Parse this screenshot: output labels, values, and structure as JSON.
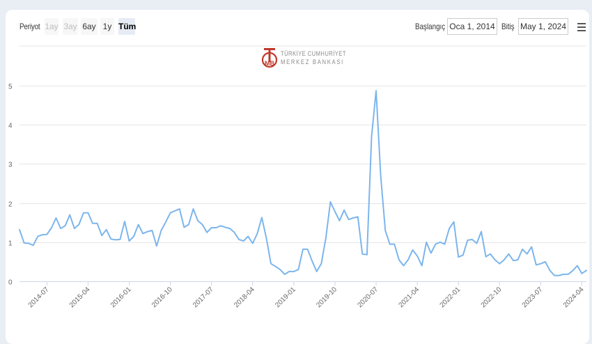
{
  "toolbar": {
    "period_label": "Periyot",
    "buttons": [
      {
        "label": "1ay",
        "state": "disabled"
      },
      {
        "label": "3ay",
        "state": "disabled"
      },
      {
        "label": "6ay",
        "state": "normal"
      },
      {
        "label": "1y",
        "state": "normal"
      },
      {
        "label": "Tüm",
        "state": "active"
      }
    ],
    "start_label": "Başlangıç",
    "start_value": "Oca 1, 2014",
    "end_label": "Bitiş",
    "end_value": "May 1, 2024",
    "menu_icon": "hamburger-menu-icon"
  },
  "logo": {
    "line1": "TÜRKİYE CUMHURİYET",
    "line2": "MERKEZ BANKASI",
    "icon": "tcmb-logo-icon",
    "color": "#c0392b"
  },
  "chart_data": {
    "type": "line",
    "title": "",
    "xlabel": "",
    "ylabel": "",
    "ylim": [
      0,
      5
    ],
    "y_ticks": [
      "0",
      "1",
      "2",
      "3",
      "4",
      "5"
    ],
    "x_start": "2014-01",
    "x_end": "2024-05",
    "x_tick_labels": [
      "2014-07",
      "2015-04",
      "2016-01",
      "2016-10",
      "2017-07",
      "2018-04",
      "2019-01",
      "2019-10",
      "2020-07",
      "2021-04",
      "2022-01",
      "2022-10",
      "2023-07",
      "2024-04"
    ],
    "grid": true,
    "line_color": "#7cb5ec",
    "series": [
      {
        "x": [
          "2014-01",
          "2014-02",
          "2014-03",
          "2014-04",
          "2014-05",
          "2014-06",
          "2014-07",
          "2014-08",
          "2014-09",
          "2014-10",
          "2014-11",
          "2014-12",
          "2015-01",
          "2015-02",
          "2015-03",
          "2015-04",
          "2015-05",
          "2015-06",
          "2015-07",
          "2015-08",
          "2015-09",
          "2015-10",
          "2015-11",
          "2015-12",
          "2016-01",
          "2016-02",
          "2016-03",
          "2016-04",
          "2016-05",
          "2016-06",
          "2016-07",
          "2016-08",
          "2016-09",
          "2016-10",
          "2016-11",
          "2016-12",
          "2017-01",
          "2017-02",
          "2017-03",
          "2017-04",
          "2017-05",
          "2017-06",
          "2017-07",
          "2017-08",
          "2017-09",
          "2017-10",
          "2017-11",
          "2017-12",
          "2018-01",
          "2018-02",
          "2018-03",
          "2018-04",
          "2018-05",
          "2018-06",
          "2018-07",
          "2018-08",
          "2018-09",
          "2018-10",
          "2018-11",
          "2018-12",
          "2019-01",
          "2019-02",
          "2019-03",
          "2019-04",
          "2019-05",
          "2019-06",
          "2019-07",
          "2019-08",
          "2019-09",
          "2019-10",
          "2019-11",
          "2019-12",
          "2020-01",
          "2020-02",
          "2020-03",
          "2020-04",
          "2020-05",
          "2020-06",
          "2020-07",
          "2020-08",
          "2020-09",
          "2020-10",
          "2020-11",
          "2020-12",
          "2021-01",
          "2021-02",
          "2021-03",
          "2021-04",
          "2021-05",
          "2021-06",
          "2021-07",
          "2021-08",
          "2021-09",
          "2021-10",
          "2021-11",
          "2021-12",
          "2022-01",
          "2022-02",
          "2022-03",
          "2022-04",
          "2022-05",
          "2022-06",
          "2022-07",
          "2022-08",
          "2022-09",
          "2022-10",
          "2022-11",
          "2022-12",
          "2023-01",
          "2023-02",
          "2023-03",
          "2023-04",
          "2023-05",
          "2023-06",
          "2023-07",
          "2023-08",
          "2023-09",
          "2023-10",
          "2023-11",
          "2023-12",
          "2024-01",
          "2024-02",
          "2024-03",
          "2024-04",
          "2024-05"
        ],
        "values": [
          1.32,
          0.98,
          0.97,
          0.92,
          1.15,
          1.19,
          1.2,
          1.37,
          1.62,
          1.35,
          1.42,
          1.7,
          1.35,
          1.45,
          1.75,
          1.75,
          1.48,
          1.48,
          1.17,
          1.32,
          1.08,
          1.06,
          1.07,
          1.53,
          1.03,
          1.15,
          1.45,
          1.22,
          1.27,
          1.3,
          0.9,
          1.3,
          1.52,
          1.75,
          1.8,
          1.85,
          1.38,
          1.45,
          1.85,
          1.55,
          1.45,
          1.25,
          1.37,
          1.37,
          1.42,
          1.38,
          1.35,
          1.25,
          1.07,
          1.03,
          1.15,
          0.97,
          1.22,
          1.63,
          1.1,
          0.45,
          0.38,
          0.3,
          0.18,
          0.25,
          0.25,
          0.3,
          0.82,
          0.82,
          0.52,
          0.25,
          0.45,
          1.1,
          2.03,
          1.78,
          1.55,
          1.82,
          1.58,
          1.62,
          1.65,
          0.7,
          0.68,
          3.7,
          4.87,
          2.7,
          1.3,
          0.95,
          0.95,
          0.55,
          0.4,
          0.55,
          0.8,
          0.65,
          0.4,
          1.0,
          0.72,
          0.95,
          1.0,
          0.95,
          1.35,
          1.52,
          0.62,
          0.67,
          1.05,
          1.07,
          0.97,
          1.27,
          0.63,
          0.7,
          0.55,
          0.45,
          0.55,
          0.7,
          0.53,
          0.55,
          0.82,
          0.7,
          0.88,
          0.42,
          0.45,
          0.5,
          0.28,
          0.15,
          0.15,
          0.18,
          0.18,
          0.27,
          0.4,
          0.2,
          0.28
        ]
      }
    ]
  }
}
